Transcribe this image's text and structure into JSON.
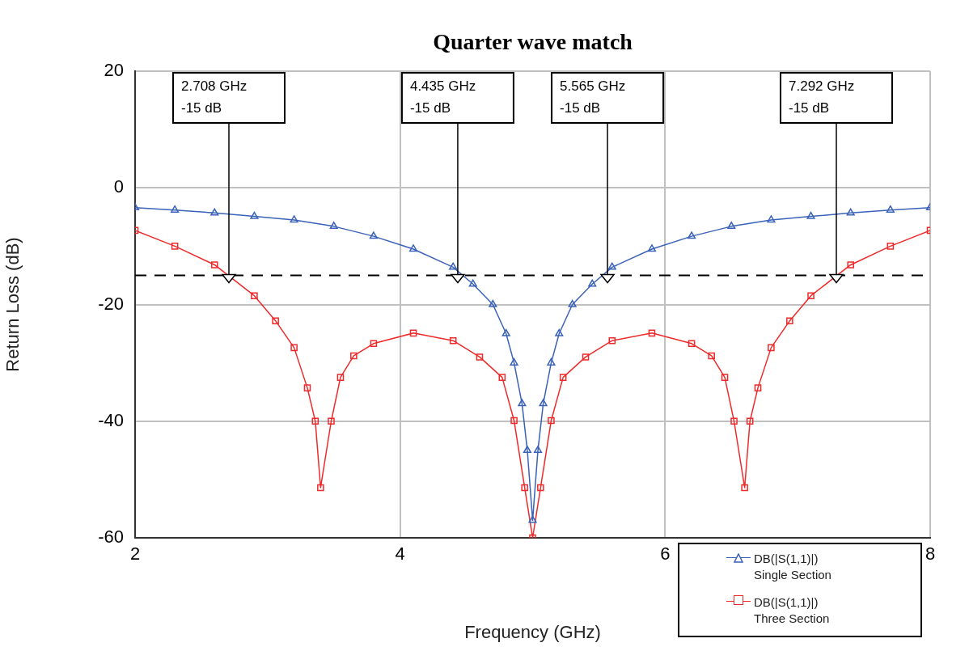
{
  "chart_data": {
    "type": "line",
    "title": "Quarter wave match",
    "xlabel": "Frequency (GHz)",
    "ylabel": "Return Loss (dB)",
    "xlim": [
      2,
      8
    ],
    "xticks": [
      2,
      4,
      6,
      8
    ],
    "ylim": [
      -60,
      20
    ],
    "yticks": [
      -60,
      -40,
      -20,
      0,
      20
    ],
    "grid": true,
    "legend": "bottom right",
    "line_style": "solid",
    "series": [
      {
        "name": "DB(|S(1,1)|)\nSingle Section",
        "color": "#3a62b8",
        "marker": "triangle",
        "x": [
          2,
          2.3,
          2.6,
          2.9,
          3.2,
          3.5,
          3.8,
          4.1,
          4.4,
          4.55,
          4.7,
          4.8,
          4.86,
          4.92,
          4.96,
          5.0,
          5.04,
          5.08,
          5.14,
          5.2,
          5.3,
          5.45,
          5.6,
          5.9,
          6.2,
          6.5,
          6.8,
          7.1,
          7.4,
          7.7,
          8
        ],
        "values": [
          -3.4,
          -3.8,
          -4.3,
          -4.9,
          -5.5,
          -6.6,
          -8.3,
          -10.5,
          -13.6,
          -16.5,
          -20,
          -25,
          -30,
          -37,
          -45,
          -57,
          -45,
          -37,
          -30,
          -25,
          -20,
          -16.5,
          -13.6,
          -10.5,
          -8.3,
          -6.6,
          -5.5,
          -4.9,
          -4.3,
          -3.8,
          -3.4
        ]
      },
      {
        "name": "DB(|S(1,1)|)\nThree Section",
        "color": "#ee2a2a",
        "marker": "square",
        "x": [
          2,
          2.3,
          2.6,
          2.9,
          3.06,
          3.2,
          3.3,
          3.36,
          3.4,
          3.48,
          3.55,
          3.65,
          3.8,
          4.1,
          4.4,
          4.6,
          4.77,
          4.86,
          4.94,
          5.0,
          5.06,
          5.14,
          5.23,
          5.4,
          5.6,
          5.9,
          6.2,
          6.35,
          6.45,
          6.52,
          6.6,
          6.64,
          6.7,
          6.8,
          6.94,
          7.1,
          7.4,
          7.7,
          8
        ],
        "values": [
          -7.3,
          -10,
          -13.2,
          -18.5,
          -22.8,
          -27.4,
          -34.3,
          -40,
          -51.4,
          -40,
          -32.5,
          -28.8,
          -26.7,
          -24.9,
          -26.2,
          -29,
          -32.5,
          -39.9,
          -51.4,
          -60,
          -51.4,
          -39.9,
          -32.5,
          -29,
          -26.2,
          -24.9,
          -26.7,
          -28.8,
          -32.5,
          -40,
          -51.4,
          -40,
          -34.3,
          -27.4,
          -22.8,
          -18.5,
          -13.2,
          -10,
          -7.3
        ]
      }
    ],
    "ref_lines": [
      {
        "axis": "y",
        "value": -15,
        "color": "#000000",
        "line_style": "dashed"
      }
    ],
    "annotations": [
      {
        "text": "2.708 GHz\n-15 dB",
        "x": 2.708,
        "y": -15
      },
      {
        "text": "4.435 GHz\n-15 dB",
        "x": 4.435,
        "y": -15
      },
      {
        "text": "5.565 GHz\n-15 dB",
        "x": 5.565,
        "y": -15
      },
      {
        "text": "7.292 GHz\n-15 dB",
        "x": 7.292,
        "y": -15
      }
    ]
  }
}
